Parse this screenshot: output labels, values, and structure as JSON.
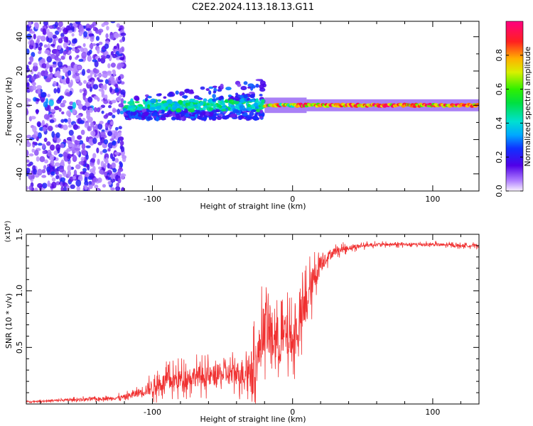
{
  "figure": {
    "title": "C2E2.2024.113.18.13.G11"
  },
  "chart_data": [
    {
      "type": "heatmap",
      "title": "C2E2.2024.113.18.13.G11",
      "xlabel": "Height of straight line (km)",
      "ylabel": "Frequency (Hz)",
      "xlim": [
        -190,
        133
      ],
      "ylim": [
        -50,
        49
      ],
      "x_ticks": [
        -100,
        0,
        100
      ],
      "x_tick_labels": [
        "-100",
        "0",
        "100"
      ],
      "y_ticks": [
        -40,
        -20,
        0,
        20,
        40
      ],
      "y_tick_labels": [
        "-40",
        "-20",
        "0",
        "20",
        "40"
      ],
      "grid": false,
      "colorbar": {
        "label": "Normalized spectral amplitude",
        "range": [
          0,
          1
        ],
        "ticks": [
          0,
          0.2,
          0.4,
          0.6,
          0.8
        ],
        "tick_labels": [
          "0.0",
          "0.2",
          "0.4",
          "0.6",
          "0.8"
        ],
        "colormap": "rainbow"
      },
      "regions": [
        {
          "x": [
            -190,
            -120
          ],
          "frequency_spread": [
            -50,
            49
          ],
          "amplitude": [
            0.05,
            0.25
          ]
        },
        {
          "x": [
            -120,
            -20
          ],
          "frequency_spread": [
            -12,
            16
          ],
          "amplitude": [
            0.1,
            0.5
          ]
        },
        {
          "x": [
            -20,
            10
          ],
          "frequency_spread": [
            -3,
            3
          ],
          "amplitude": [
            0.4,
            1.0
          ]
        },
        {
          "x": [
            10,
            133
          ],
          "frequency_spread": [
            -2,
            2
          ],
          "amplitude": [
            0.6,
            1.0
          ]
        }
      ]
    },
    {
      "type": "line",
      "xlabel": "Height of straight line (km)",
      "ylabel": "SNR (10 * v/v)",
      "y_multiplier": "(x10⁴)",
      "xlim": [
        -190,
        133
      ],
      "ylim": [
        0,
        1.5
      ],
      "x_ticks": [
        -100,
        0,
        100
      ],
      "x_tick_labels": [
        "-100",
        "0",
        "100"
      ],
      "y_ticks": [
        0.5,
        1.0,
        1.5
      ],
      "y_tick_labels": [
        "0.5",
        "1.0",
        "1.5"
      ],
      "grid": false,
      "series": [
        {
          "color": "#f03030",
          "x": [
            -190,
            -170,
            -150,
            -130,
            -120,
            -110,
            -100,
            -90,
            -80,
            -70,
            -60,
            -50,
            -40,
            -30,
            -25,
            -20,
            -15,
            -10,
            -5,
            0,
            5,
            10,
            15,
            20,
            25,
            30,
            40,
            50,
            60,
            80,
            100,
            120,
            133
          ],
          "y": [
            0.02,
            0.03,
            0.04,
            0.05,
            0.06,
            0.1,
            0.15,
            0.2,
            0.22,
            0.25,
            0.24,
            0.26,
            0.27,
            0.3,
            0.4,
            0.7,
            0.6,
            0.55,
            0.6,
            0.55,
            0.7,
            0.9,
            1.1,
            1.25,
            1.3,
            1.35,
            1.38,
            1.4,
            1.41,
            1.41,
            1.41,
            1.4,
            1.4
          ],
          "jitter": [
            0.01,
            0.02,
            0.03,
            0.03,
            0.05,
            0.08,
            0.15,
            0.18,
            0.2,
            0.2,
            0.2,
            0.2,
            0.22,
            0.35,
            0.45,
            0.5,
            0.5,
            0.5,
            0.45,
            0.4,
            0.45,
            0.4,
            0.3,
            0.2,
            0.1,
            0.08,
            0.05,
            0.04,
            0.03,
            0.03,
            0.03,
            0.03,
            0.03
          ]
        }
      ]
    }
  ],
  "colors": {
    "signal": "#f03030"
  }
}
